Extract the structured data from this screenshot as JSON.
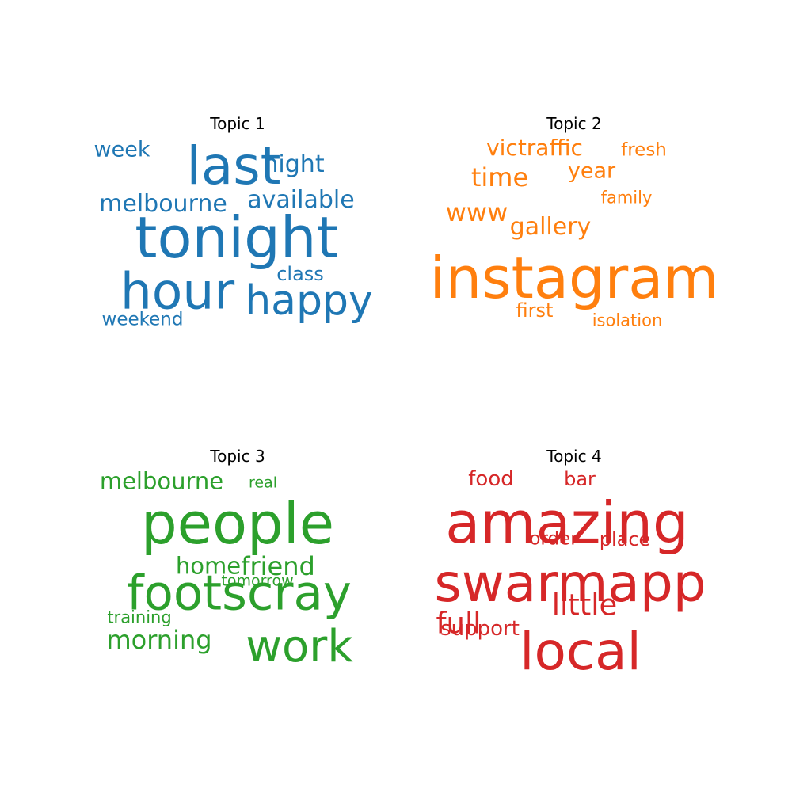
{
  "chart_data": [
    {
      "type": "wordcloud",
      "title": "Topic 1",
      "color": "#1f77b4",
      "words": [
        {
          "text": "tonight",
          "weight": 1.0
        },
        {
          "text": "last",
          "weight": 0.92
        },
        {
          "text": "hour",
          "weight": 0.88
        },
        {
          "text": "happy",
          "weight": 0.72
        },
        {
          "text": "night",
          "weight": 0.42
        },
        {
          "text": "available",
          "weight": 0.42
        },
        {
          "text": "melbourne",
          "weight": 0.42
        },
        {
          "text": "week",
          "weight": 0.37
        },
        {
          "text": "class",
          "weight": 0.34
        },
        {
          "text": "weekend",
          "weight": 0.32
        }
      ]
    },
    {
      "type": "wordcloud",
      "title": "Topic 2",
      "color": "#ff7f0e",
      "words": [
        {
          "text": "instagram",
          "weight": 1.0
        },
        {
          "text": "time",
          "weight": 0.45
        },
        {
          "text": "www",
          "weight": 0.45
        },
        {
          "text": "gallery",
          "weight": 0.42
        },
        {
          "text": "victraffic",
          "weight": 0.39
        },
        {
          "text": "year",
          "weight": 0.37
        },
        {
          "text": "first",
          "weight": 0.34
        },
        {
          "text": "fresh",
          "weight": 0.32
        },
        {
          "text": "family",
          "weight": 0.29
        },
        {
          "text": "isolation",
          "weight": 0.29
        }
      ]
    },
    {
      "type": "wordcloud",
      "title": "Topic 3",
      "color": "#2ca02c",
      "words": [
        {
          "text": "people",
          "weight": 1.0
        },
        {
          "text": "footscray",
          "weight": 0.85
        },
        {
          "text": "work",
          "weight": 0.78
        },
        {
          "text": "friend",
          "weight": 0.45
        },
        {
          "text": "morning",
          "weight": 0.45
        },
        {
          "text": "melbourne",
          "weight": 0.4
        },
        {
          "text": "home",
          "weight": 0.4
        },
        {
          "text": "training",
          "weight": 0.29
        },
        {
          "text": "tomorrow",
          "weight": 0.26
        },
        {
          "text": "real",
          "weight": 0.26
        }
      ]
    },
    {
      "type": "wordcloud",
      "title": "Topic 4",
      "color": "#d62728",
      "words": [
        {
          "text": "amazing",
          "weight": 1.0
        },
        {
          "text": "swarmapp",
          "weight": 0.92
        },
        {
          "text": "local",
          "weight": 0.92
        },
        {
          "text": "little",
          "weight": 0.52
        },
        {
          "text": "full",
          "weight": 0.52
        },
        {
          "text": "support",
          "weight": 0.36
        },
        {
          "text": "food",
          "weight": 0.36
        },
        {
          "text": "bar",
          "weight": 0.34
        },
        {
          "text": "place",
          "weight": 0.34
        },
        {
          "text": "order",
          "weight": 0.32
        }
      ]
    }
  ]
}
